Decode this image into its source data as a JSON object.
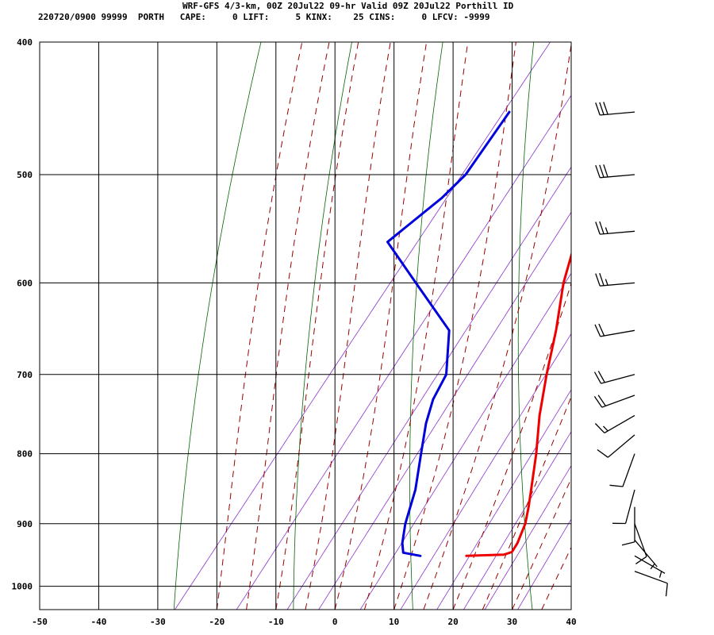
{
  "header": {
    "title": "WRF-GFS 4/3-km, 00Z 20Jul22 09-hr Valid 09Z 20Jul22 Porthill ID",
    "stats": "220720/0900 99999  PORTH   CAPE:     0 LIFT:     5 KINX:    25 CINS:     0 LFCV: -9999"
  },
  "colors": {
    "temperature": "#ee0000",
    "dewpoint": "#0000dd",
    "isotherm": "#000000",
    "dry_adiabat": "#006600",
    "moist_adiabat": "#990000",
    "mixing_ratio": "#8833cc"
  },
  "chart_data": {
    "type": "line",
    "title": "",
    "xlabel": "",
    "ylabel": "",
    "skew_t": true,
    "y_log_scale": true,
    "grid": true,
    "xlim": [
      -50,
      40
    ],
    "ylim_hpa": [
      1040,
      400
    ],
    "x_ticks": [
      "-50",
      "-40",
      "-30",
      "-20",
      "-10",
      "0",
      "10",
      "20",
      "30",
      "40"
    ],
    "y_ticks": [
      "400",
      "500",
      "600",
      "700",
      "800",
      "900",
      "1000"
    ],
    "series": [
      {
        "key": "temperature",
        "points": [
          [
            950,
            15.3
          ],
          [
            948,
            21.5
          ],
          [
            944,
            22.5
          ],
          [
            930,
            22.3
          ],
          [
            900,
            21.1
          ],
          [
            875,
            19.5
          ],
          [
            850,
            17.7
          ],
          [
            800,
            13.9
          ],
          [
            750,
            9.5
          ],
          [
            700,
            5.4
          ],
          [
            650,
            1.3
          ],
          [
            600,
            -3.6
          ],
          [
            550,
            -7.8
          ],
          [
            500,
            -13.6
          ],
          [
            450,
            -19.0
          ]
        ]
      },
      {
        "key": "dewpoint",
        "points": [
          [
            950,
            7.5
          ],
          [
            945,
            4.2
          ],
          [
            930,
            2.8
          ],
          [
            900,
            0.8
          ],
          [
            850,
            -1.9
          ],
          [
            800,
            -5.6
          ],
          [
            760,
            -8.7
          ],
          [
            730,
            -10.6
          ],
          [
            700,
            -11.6
          ],
          [
            650,
            -16.8
          ],
          [
            600,
            -28.6
          ],
          [
            560,
            -38.7
          ],
          [
            520,
            -35.2
          ],
          [
            500,
            -34.2
          ],
          [
            450,
            -34.9
          ]
        ]
      }
    ],
    "wind_barbs": [
      {
        "p": 450,
        "dir": 265,
        "kt": 30
      },
      {
        "p": 500,
        "dir": 265,
        "kt": 30
      },
      {
        "p": 550,
        "dir": 265,
        "kt": 25
      },
      {
        "p": 600,
        "dir": 265,
        "kt": 25
      },
      {
        "p": 650,
        "dir": 260,
        "kt": 20
      },
      {
        "p": 700,
        "dir": 255,
        "kt": 20
      },
      {
        "p": 725,
        "dir": 250,
        "kt": 20
      },
      {
        "p": 750,
        "dir": 240,
        "kt": 15
      },
      {
        "p": 775,
        "dir": 230,
        "kt": 10
      },
      {
        "p": 800,
        "dir": 200,
        "kt": 10
      },
      {
        "p": 850,
        "dir": 195,
        "kt": 10
      },
      {
        "p": 875,
        "dir": 180,
        "kt": 10
      },
      {
        "p": 900,
        "dir": 160,
        "kt": 10
      },
      {
        "p": 925,
        "dir": 140,
        "kt": 5
      },
      {
        "p": 950,
        "dir": 120,
        "kt": 5
      },
      {
        "p": 975,
        "dir": 110,
        "kt": 10
      }
    ]
  }
}
